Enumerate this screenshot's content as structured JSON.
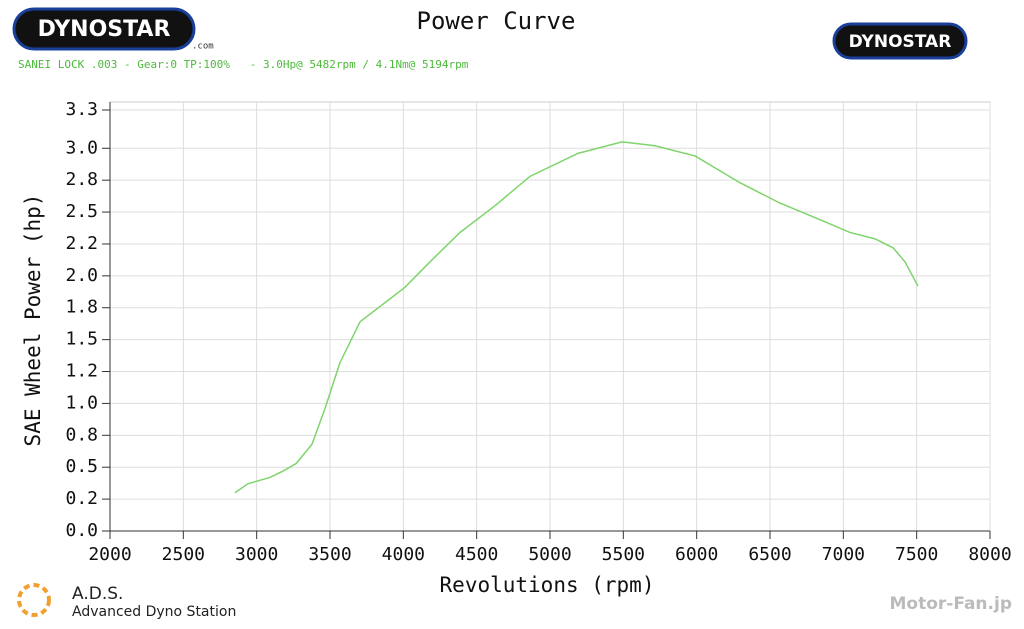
{
  "header": {
    "logo_left": "DYNOSTAR",
    "logo_left_suffix": ".com",
    "logo_right": "DYNOSTAR",
    "info": "SANEI LOCK .003 - Gear:0 TP:100%   - 3.0Hp@ 5482rpm / 4.1Nm@ 5194rpm"
  },
  "footer": {
    "brand": "A.D.S.",
    "brand_full": "Advanced Dyno Station",
    "watermark": "Motor-Fan.jp"
  },
  "chart_data": {
    "type": "line",
    "title": "Power Curve",
    "x_label": "Revolutions (rpm)",
    "y_label": "SAE Wheel Power (hp)",
    "xlim": [
      2000,
      8000
    ],
    "xticks": [
      2000,
      2500,
      3000,
      3500,
      4000,
      4500,
      5000,
      5500,
      6000,
      6500,
      7000,
      7500,
      8000
    ],
    "ylim": [
      0,
      3.3
    ],
    "yticks": [
      {
        "value": 0,
        "label": "0.0"
      },
      {
        "value": 0.25,
        "label": "0.2"
      },
      0.5,
      {
        "value": 0.75,
        "label": "0.8"
      },
      {
        "value": 1,
        "label": "1.0"
      },
      {
        "value": 1.25,
        "label": "1.2"
      },
      1.5,
      {
        "value": 1.75,
        "label": "1.8"
      },
      {
        "value": 2,
        "label": "2.0"
      },
      {
        "value": 2.25,
        "label": "2.2"
      },
      2.5,
      {
        "value": 2.75,
        "label": "2.8"
      },
      {
        "value": 3,
        "label": "3.0"
      },
      3.3
    ],
    "grid": true,
    "series": [
      {
        "name": "Power",
        "color": "#7fd46c",
        "x": [
          2852,
          2940,
          3090,
          3180,
          3270,
          3377,
          3466,
          3568,
          3705,
          3875,
          4011,
          4182,
          4386,
          4625,
          4864,
          5191,
          5491,
          5716,
          5989,
          6295,
          6568,
          6841,
          7045,
          7216,
          7339,
          7420,
          7509
        ],
        "values": [
          0.3,
          0.37,
          0.42,
          0.47,
          0.53,
          0.68,
          0.96,
          1.32,
          1.64,
          1.79,
          1.91,
          2.11,
          2.34,
          2.55,
          2.78,
          2.96,
          3.05,
          3.02,
          2.94,
          2.73,
          2.57,
          2.44,
          2.34,
          2.29,
          2.22,
          2.11,
          1.92
        ]
      }
    ]
  }
}
